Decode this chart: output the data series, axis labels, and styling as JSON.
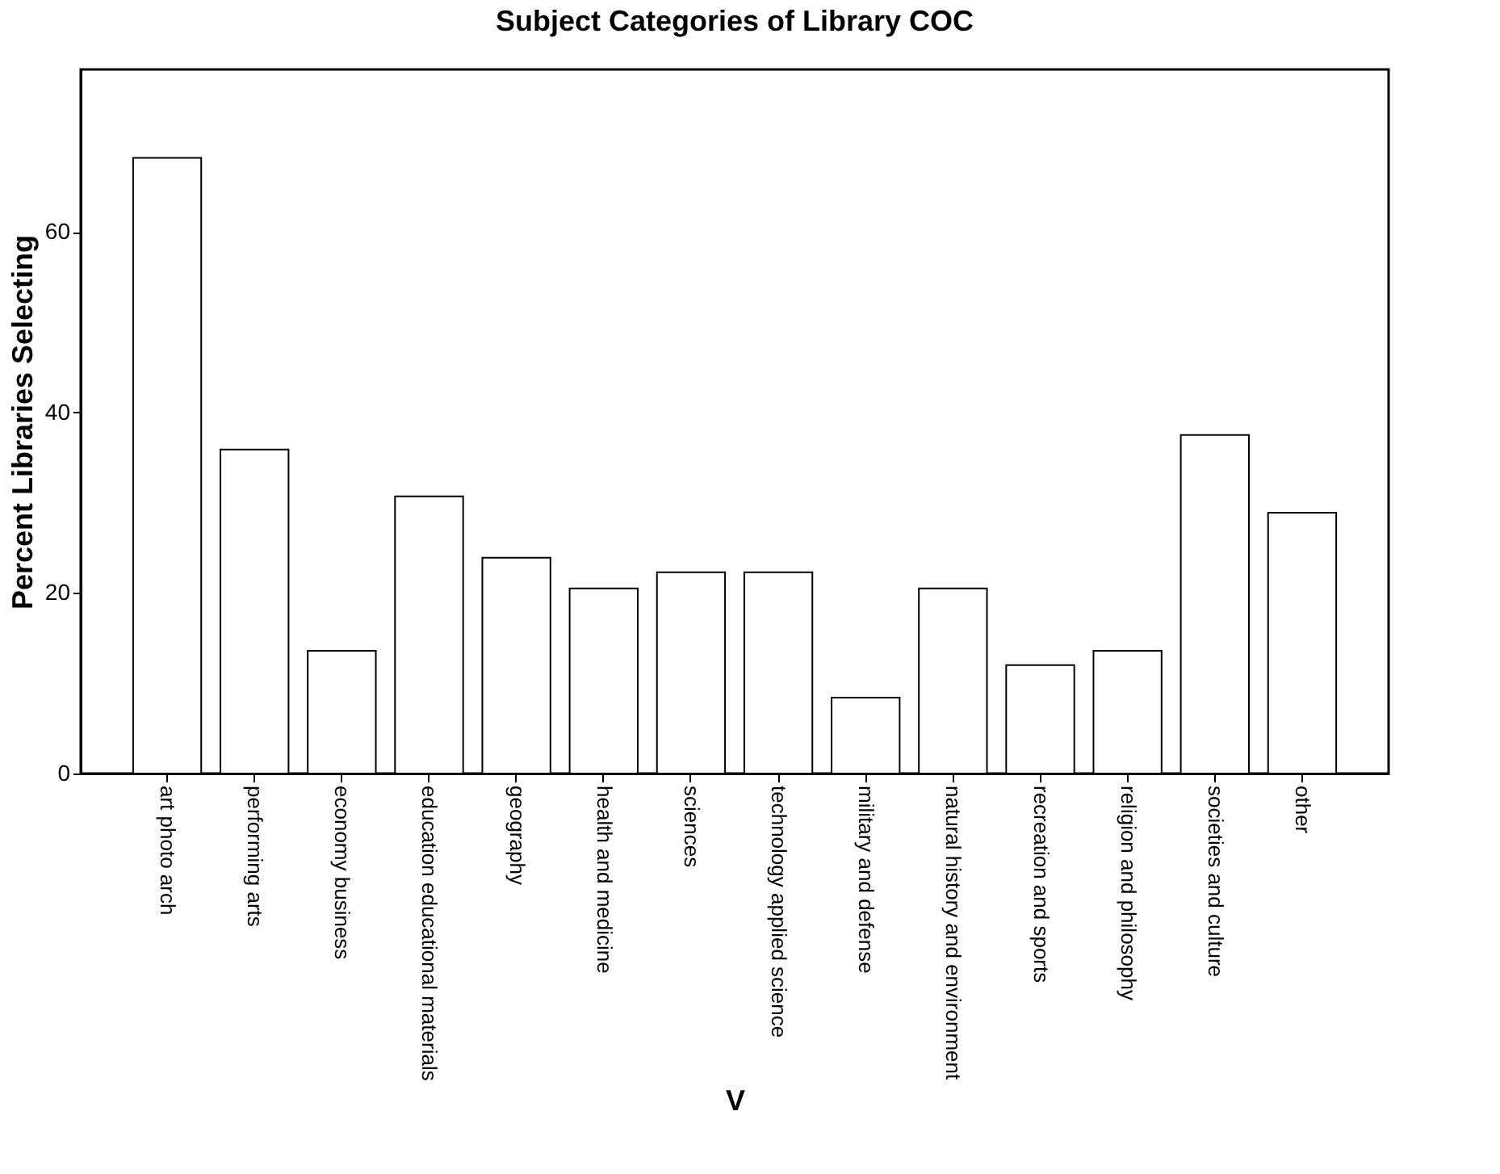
{
  "chart_data": {
    "type": "bar",
    "title": "Subject Categories of Library COC",
    "xlabel": "V",
    "ylabel": "Percent Libraries Selecting",
    "categories": [
      "art photo arch",
      "performing arts",
      "economy business",
      "education educational materials",
      "geography",
      "health and medicine",
      "sciences",
      "technology applied science",
      "military and defense",
      "natural history and environment",
      "recreation and sports",
      "religion and philosophy",
      "societies and culture",
      "other"
    ],
    "values": [
      68.2,
      35.9,
      13.6,
      30.7,
      23.9,
      20.5,
      22.3,
      22.3,
      8.4,
      20.5,
      12.0,
      13.6,
      37.5,
      28.9
    ],
    "color": "#ffffff",
    "ylim": [
      0,
      78
    ],
    "yticks": [
      0,
      20,
      40,
      60
    ],
    "grid": false
  }
}
